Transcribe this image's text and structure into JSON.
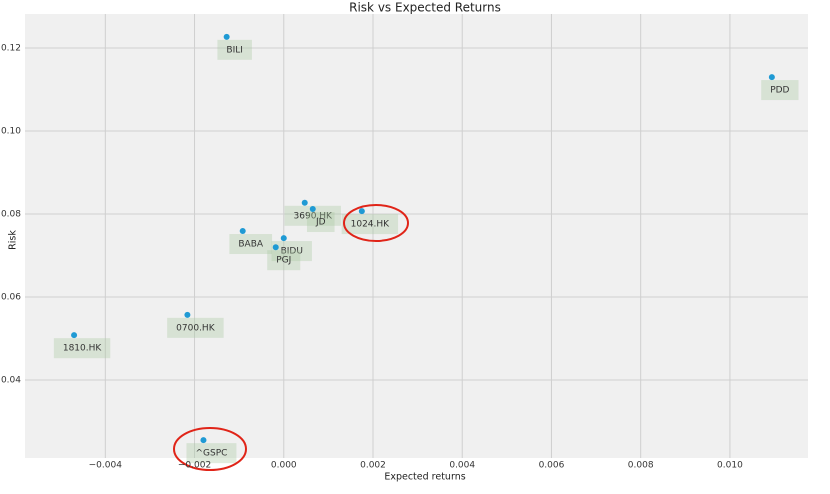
{
  "chart_data": {
    "type": "scatter",
    "title": "Risk vs Expected Returns",
    "x_label": "Expected returns",
    "y_label": "Risk",
    "labels": [
      "BILI",
      "PDD",
      "3690.HK",
      "JD",
      "1024.HK",
      "BABA",
      "BIDU",
      "PGJ",
      "0700.HK",
      "1810.HK",
      "^GSPC"
    ],
    "x": [
      -0.00128,
      0.01094,
      0.00047,
      0.00065,
      0.00175,
      -0.00092,
      0.0,
      -0.00018,
      -0.00216,
      -0.0047,
      -0.0018
    ],
    "values": [
      0.1227,
      0.113,
      0.0827,
      0.0812,
      0.0807,
      0.0759,
      0.0742,
      0.072,
      0.0557,
      0.0508,
      0.0255
    ],
    "color": "#1f9ad4",
    "xlim": [
      -0.0058,
      0.01175
    ],
    "ylim": [
      0.0212,
      0.1282
    ],
    "xticks": [
      {
        "value": -0.004,
        "label": "−0.004"
      },
      {
        "value": -0.002,
        "label": "−0.002"
      },
      {
        "value": 0,
        "label": "0.000"
      },
      0.002,
      0.004,
      0.006,
      0.008,
      {
        "value": 0.01,
        "label": "0.010"
      }
    ],
    "yticks": [
      0.04,
      0.06,
      0.08,
      {
        "value": 0.1,
        "label": "0.10"
      },
      0.12
    ],
    "grid": true
  }
}
